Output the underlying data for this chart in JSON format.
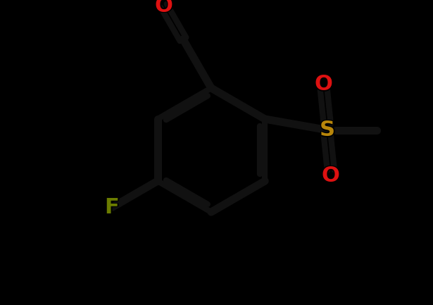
{
  "background_color": "#000000",
  "bond_color": "#000000",
  "atom_colors": {
    "O": "#dd1111",
    "S": "#b8860b",
    "F": "#6b7c00",
    "C": "#000000"
  },
  "figsize": [
    6.15,
    4.33
  ],
  "dpi": 100
}
